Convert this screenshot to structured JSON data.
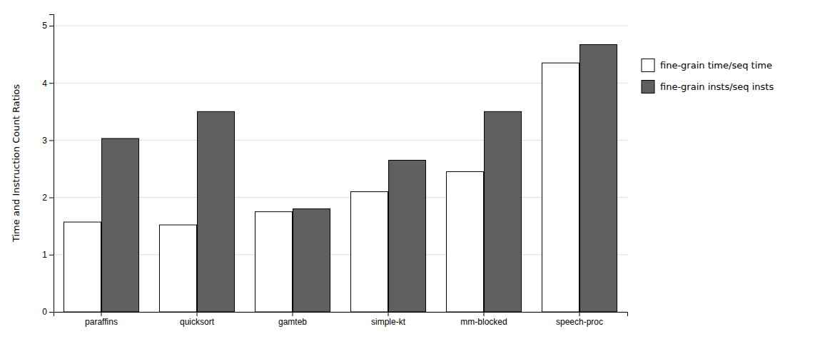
{
  "chart_data": {
    "type": "bar",
    "categories": [
      "paraffins",
      "quicksort",
      "gamteb",
      "simple-kt",
      "mm-blocked",
      "speech-proc"
    ],
    "series": [
      {
        "name": "fine-grain time/seq time",
        "color": "#ffffff",
        "values": [
          1.57,
          1.52,
          1.75,
          2.1,
          2.45,
          4.35
        ]
      },
      {
        "name": "fine-grain insts/seq insts",
        "color": "#606060",
        "values": [
          3.03,
          3.5,
          1.8,
          2.65,
          3.5,
          4.67
        ]
      }
    ],
    "ylabel": "Time and Instruction Count Ratios",
    "ylim": [
      0,
      5.2
    ],
    "yticks": [
      0,
      1,
      2,
      3,
      4,
      5
    ],
    "grid": true,
    "legend": "right"
  }
}
